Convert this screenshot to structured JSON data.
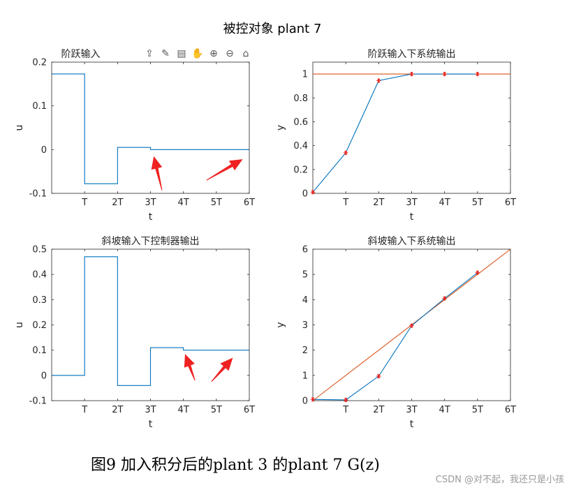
{
  "figure_title": "被控对象 plant 7",
  "caption": "图9 加入积分后的plant 3 的plant 7 G(z)",
  "watermark": "CSDN @对不起，我还只是小孩",
  "toolbar": {
    "icons": [
      "export-icon",
      "brush-icon",
      "datatip-icon",
      "pan-icon",
      "zoom-in-icon",
      "zoom-out-icon",
      "home-icon"
    ]
  },
  "colors": {
    "blue": "#0072BD",
    "orange": "#D95319",
    "red_star": "#E8231B",
    "arrow": "#EE2222"
  },
  "chart_data": [
    {
      "id": "step-input",
      "type": "line",
      "title": "阶跃输入",
      "xlabel": "t",
      "ylabel": "u",
      "xlim": [
        0,
        6
      ],
      "ylim": [
        -0.1,
        0.2
      ],
      "xticks": [
        1,
        2,
        3,
        4,
        5,
        6
      ],
      "xticklabels": [
        "T",
        "2T",
        "3T",
        "4T",
        "5T",
        "6T"
      ],
      "yticks": [
        -0.1,
        0,
        0.1,
        0.2
      ],
      "yticklabels": [
        "-0.1",
        "0",
        "0.1",
        "0.2"
      ],
      "series": [
        {
          "name": "u",
          "style": "stairs",
          "color": "blue",
          "x": [
            0,
            1,
            2,
            3,
            4,
            5,
            6
          ],
          "y": [
            0.173,
            -0.078,
            0.005,
            0.0,
            0.0,
            0.0,
            0.0
          ]
        }
      ],
      "annotations": [
        {
          "type": "arrow",
          "from": [
            3.35,
            -0.093
          ],
          "to": [
            3.1,
            -0.015
          ]
        },
        {
          "type": "arrow",
          "from": [
            4.7,
            -0.07
          ],
          "to": [
            5.8,
            -0.022
          ]
        }
      ]
    },
    {
      "id": "step-output",
      "type": "line",
      "title": "阶跃输入下系统输出",
      "xlabel": "t",
      "ylabel": "y",
      "xlim": [
        0,
        6
      ],
      "ylim": [
        0,
        1.1
      ],
      "xticks": [
        1,
        2,
        3,
        4,
        5,
        6
      ],
      "xticklabels": [
        "T",
        "2T",
        "3T",
        "4T",
        "5T",
        "6T"
      ],
      "yticks": [
        0,
        0.2,
        0.4,
        0.6,
        0.8,
        1
      ],
      "yticklabels": [
        "0",
        "0.2",
        "0.4",
        "0.6",
        "0.8",
        "1"
      ],
      "series": [
        {
          "name": "reference",
          "style": "line",
          "color": "orange",
          "x": [
            0,
            6
          ],
          "y": [
            1,
            1
          ]
        },
        {
          "name": "y",
          "style": "line",
          "color": "blue",
          "markers": true,
          "x": [
            0,
            1,
            2,
            3,
            4,
            5
          ],
          "y": [
            0.01,
            0.34,
            0.945,
            1.0,
            1.0,
            1.0
          ]
        }
      ]
    },
    {
      "id": "ramp-controller",
      "type": "line",
      "title": "斜坡输入下控制器输出",
      "xlabel": "t",
      "ylabel": "u",
      "xlim": [
        0,
        6
      ],
      "ylim": [
        -0.1,
        0.5
      ],
      "xticks": [
        1,
        2,
        3,
        4,
        5,
        6
      ],
      "xticklabels": [
        "T",
        "2T",
        "3T",
        "4T",
        "5T",
        "6T"
      ],
      "yticks": [
        -0.1,
        0,
        0.1,
        0.2,
        0.3,
        0.4,
        0.5
      ],
      "yticklabels": [
        "-0.1",
        "0",
        "0.1",
        "0.2",
        "0.3",
        "0.4",
        "0.5"
      ],
      "series": [
        {
          "name": "u",
          "style": "stairs",
          "color": "blue",
          "x": [
            0,
            1,
            2,
            3,
            4,
            5,
            6
          ],
          "y": [
            0,
            0.47,
            -0.04,
            0.11,
            0.1,
            0.1,
            0.1
          ]
        }
      ],
      "annotations": [
        {
          "type": "arrow",
          "from": [
            4.35,
            -0.02
          ],
          "to": [
            4.05,
            0.085
          ]
        },
        {
          "type": "arrow",
          "from": [
            4.85,
            -0.025
          ],
          "to": [
            5.5,
            0.07
          ]
        }
      ]
    },
    {
      "id": "ramp-output",
      "type": "line",
      "title": "斜坡输入下系统输出",
      "xlabel": "t",
      "ylabel": "y",
      "xlim": [
        0,
        6
      ],
      "ylim": [
        0,
        6
      ],
      "xticks": [
        1,
        2,
        3,
        4,
        5,
        6
      ],
      "xticklabels": [
        "T",
        "2T",
        "3T",
        "4T",
        "5T",
        "6T"
      ],
      "yticks": [
        0,
        1,
        2,
        3,
        4,
        5,
        6
      ],
      "yticklabels": [
        "0",
        "1",
        "2",
        "3",
        "4",
        "5",
        "6"
      ],
      "series": [
        {
          "name": "reference",
          "style": "line",
          "color": "orange",
          "x": [
            0,
            6
          ],
          "y": [
            0,
            6
          ]
        },
        {
          "name": "y",
          "style": "line",
          "color": "blue",
          "markers": true,
          "x": [
            0,
            1,
            2,
            3,
            4,
            5
          ],
          "y": [
            0.05,
            0.03,
            0.97,
            2.97,
            4.05,
            5.07
          ]
        }
      ]
    }
  ]
}
